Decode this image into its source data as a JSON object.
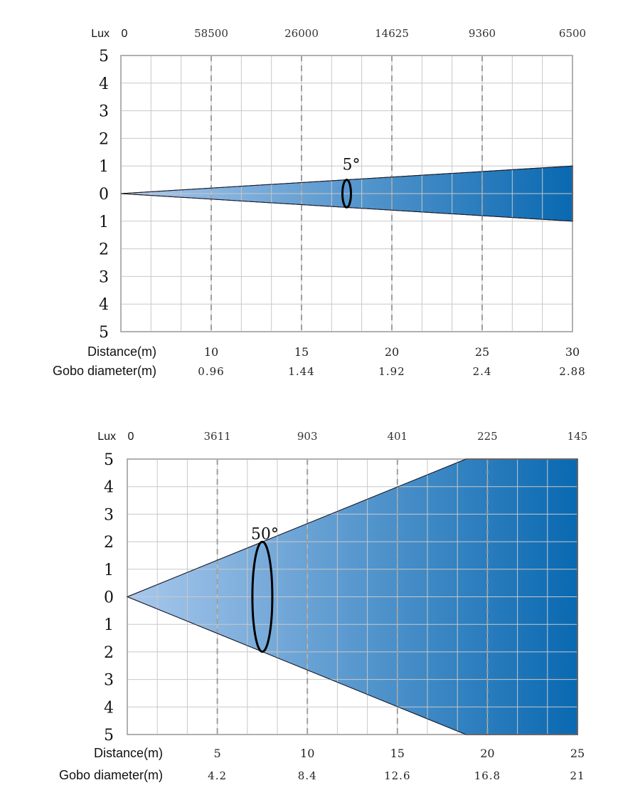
{
  "chart_data": [
    {
      "type": "area",
      "beam_angle_label": "5°",
      "lux_label": "Lux",
      "lux_zero": "0",
      "lux_values": [
        "58500",
        "26000",
        "14625",
        "9360",
        "6500"
      ],
      "distance_label": "Distance(m)",
      "distances": [
        "10",
        "15",
        "20",
        "25",
        "30"
      ],
      "gobo_label": "Gobo diameter(m)",
      "gobo_diameters": [
        "0.96",
        "1.44",
        "1.92",
        "2.4",
        "2.88"
      ],
      "y_ticks": [
        "5",
        "4",
        "3",
        "2",
        "1",
        "0",
        "1",
        "2",
        "3",
        "4",
        "5"
      ],
      "xlim": [
        5,
        30
      ],
      "ylim": [
        -5,
        5
      ],
      "beam_edge": [
        [
          5,
          0
        ],
        [
          30,
          1
        ]
      ],
      "marker_distance": 17.5,
      "grid": true,
      "colors": {
        "beam_start": "#a9c8ec",
        "beam_end": "#0969b1",
        "grid": "#c8c8c8",
        "dash": "#a0a0a0"
      }
    },
    {
      "type": "area",
      "beam_angle_label": "50°",
      "lux_label": "Lux",
      "lux_zero": "0",
      "lux_values": [
        "3611",
        "903",
        "401",
        "225",
        "145"
      ],
      "distance_label": "Distance(m)",
      "distances": [
        "5",
        "10",
        "15",
        "20",
        "25"
      ],
      "gobo_label": "Gobo diameter(m)",
      "gobo_diameters": [
        "4.2",
        "8.4",
        "12.6",
        "16.8",
        "21"
      ],
      "y_ticks": [
        "5",
        "4",
        "3",
        "2",
        "1",
        "0",
        "1",
        "2",
        "3",
        "4",
        "5"
      ],
      "xlim": [
        0,
        25
      ],
      "ylim": [
        -5,
        5
      ],
      "beam_edge": [
        [
          0,
          0
        ],
        [
          18.8,
          5
        ]
      ],
      "marker_distance": 7.5,
      "grid": true,
      "colors": {
        "beam_start": "#a9c8ec",
        "beam_end": "#0969b1",
        "grid": "#c8c8c8",
        "dash": "#a0a0a0"
      }
    }
  ]
}
